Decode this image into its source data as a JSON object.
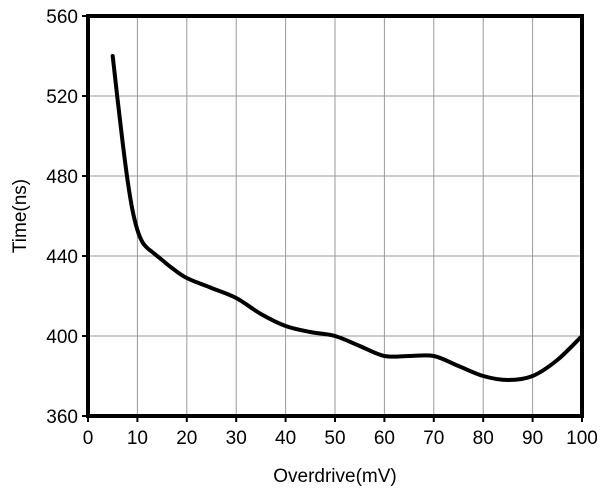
{
  "chart_data": {
    "type": "line",
    "title": "",
    "xlabel": "Overdrive(mV)",
    "ylabel": "Time(ns)",
    "xlim": [
      0,
      100
    ],
    "ylim": [
      360,
      560
    ],
    "x_ticks": [
      0,
      10,
      20,
      30,
      40,
      50,
      60,
      70,
      80,
      90,
      100
    ],
    "y_ticks": [
      360,
      400,
      440,
      480,
      520,
      560
    ],
    "x_tick_labels": [
      "0",
      "10",
      "20",
      "30",
      "40",
      "50",
      "60",
      "70",
      "80",
      "90",
      "100"
    ],
    "y_tick_labels": [
      "360",
      "400",
      "440",
      "480",
      "520",
      "560"
    ],
    "grid": true,
    "series": [
      {
        "color": "#000000",
        "x": [
          5,
          6,
          7,
          8,
          9,
          10,
          11,
          12,
          13,
          15,
          17,
          20,
          25,
          30,
          35,
          40,
          45,
          50,
          55,
          60,
          65,
          70,
          75,
          80,
          85,
          90,
          95,
          100
        ],
        "y": [
          540,
          518,
          497,
          478,
          463,
          453,
          447,
          444,
          442,
          438,
          434,
          429,
          424,
          419,
          411,
          405,
          402,
          400,
          395,
          390,
          390,
          390,
          385,
          380,
          378,
          380,
          388,
          400
        ]
      }
    ]
  }
}
